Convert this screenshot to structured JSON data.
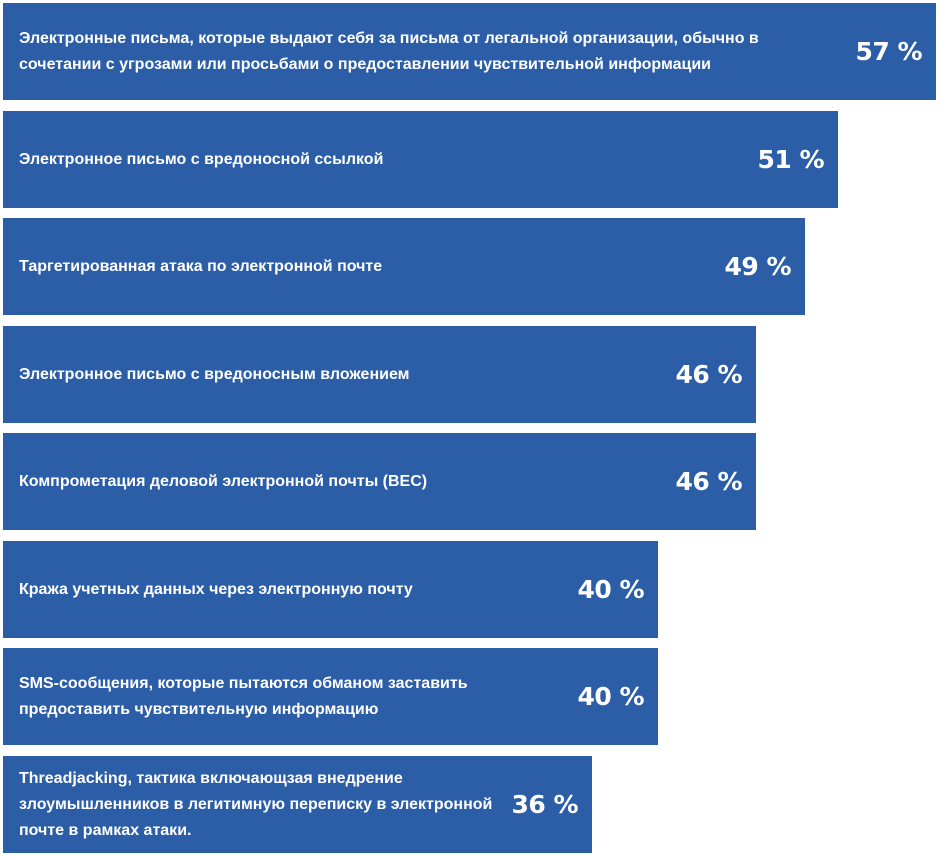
{
  "chart_data": {
    "type": "bar",
    "orientation": "horizontal",
    "unit": "%",
    "bar_color": "#2c5ea8",
    "text_color": "#ffffff",
    "categories": [
      "Электронные письма, которые выдают себя за письма от легальной  организации, обычно в сочетании с угрозами или просьбами о предоставлении чувствительной информации",
      "Электронное письмо с вредоносной ссылкой",
      "Таргетированная атака по электронной почте",
      "Электронное письмо с вредоносным вложением",
      "Компрометация деловой электронной почты (BEC)",
      "Кража учетных данных через электронную почту",
      "SMS-сообщения, которые пытаются обманом заставить предоставить чувствительную информацию",
      "Threadjacking, тактика включающзая внедрение злоумышленников в легитимную переписку в электронной почте в рамках атаки."
    ],
    "values": [
      57,
      51,
      49,
      46,
      46,
      40,
      40,
      36
    ],
    "value_labels": [
      "57 %",
      "51 %",
      "49 %",
      "46 %",
      "46 %",
      "40 %",
      "40 %",
      "36 %"
    ],
    "title": "",
    "xlabel": "",
    "ylabel": ""
  }
}
